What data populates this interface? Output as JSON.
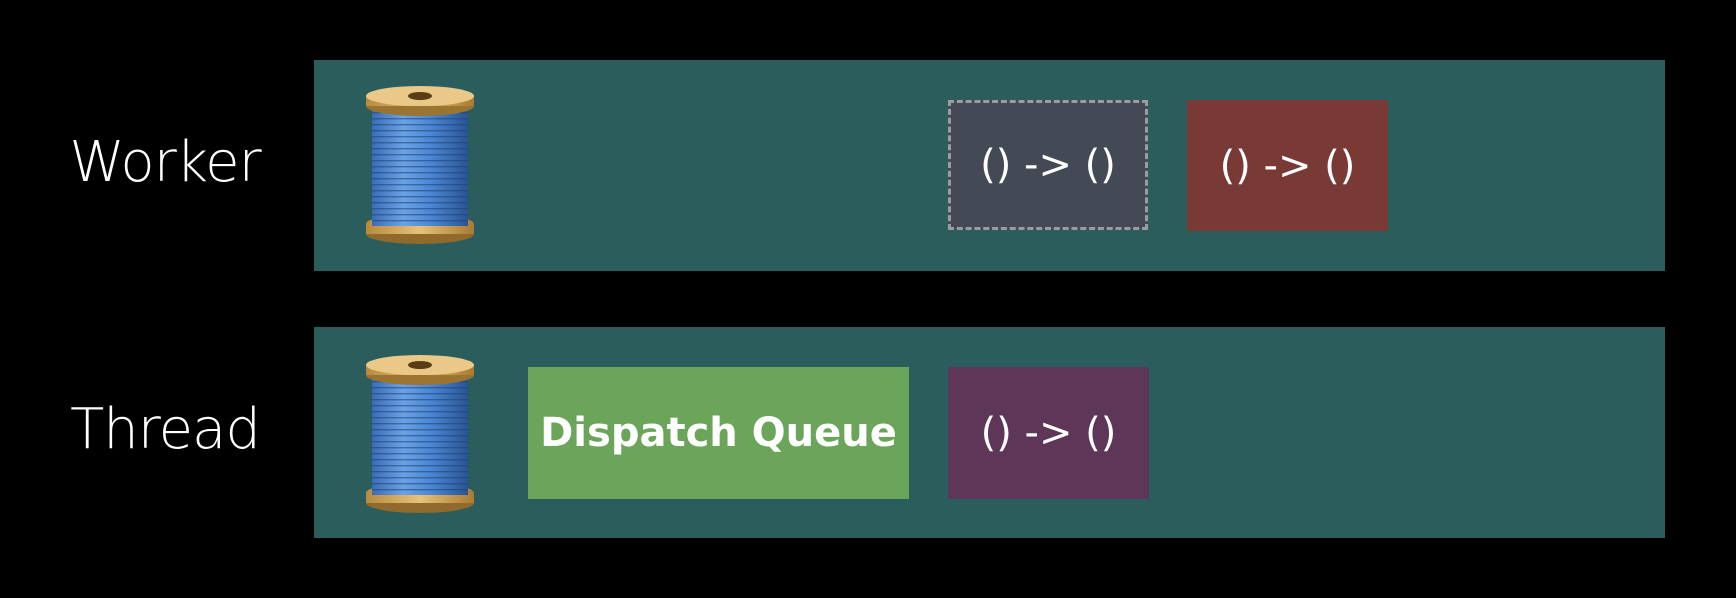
{
  "rows": [
    {
      "label": "Worker",
      "lane_color": "#2b5d5c",
      "icon": "thread-spool-icon",
      "blocks": [
        {
          "kind": "closure",
          "text": "() -> ()",
          "color": "#444a55",
          "state": "pending"
        },
        {
          "kind": "closure",
          "text": "() -> ()",
          "color": "#793935",
          "state": "active"
        }
      ]
    },
    {
      "label": "Thread",
      "lane_color": "#2b5d5c",
      "icon": "thread-spool-icon",
      "blocks": [
        {
          "kind": "queue",
          "text": "Dispatch Queue",
          "color": "#6ba55a",
          "state": "active"
        },
        {
          "kind": "closure",
          "text": "() -> ()",
          "color": "#5e3758",
          "state": "active"
        }
      ]
    }
  ]
}
